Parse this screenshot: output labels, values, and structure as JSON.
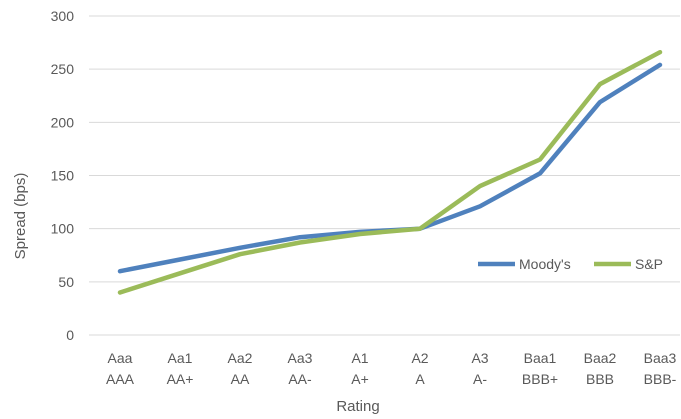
{
  "chart_data": {
    "type": "line",
    "categories": [
      [
        "Aaa",
        "AAA"
      ],
      [
        "Aa1",
        "AA+"
      ],
      [
        "Aa2",
        "AA"
      ],
      [
        "Aa3",
        "AA-"
      ],
      [
        "A1",
        "A+"
      ],
      [
        "A2",
        "A"
      ],
      [
        "A3",
        "A-"
      ],
      [
        "Baa1",
        "BBB+"
      ],
      [
        "Baa2",
        "BBB"
      ],
      [
        "Baa3",
        "BBB-"
      ]
    ],
    "series": [
      {
        "name": "Moody's",
        "color": "#4f81bd",
        "values": [
          60,
          71,
          82,
          92,
          97,
          100,
          121,
          152,
          219,
          254
        ]
      },
      {
        "name": "S&P",
        "color": "#9bbb59",
        "values": [
          40,
          58,
          76,
          87,
          95,
          100,
          140,
          165,
          236,
          266
        ]
      }
    ],
    "xlabel": "Rating",
    "ylabel": "Spread (bps)",
    "ylim": [
      0,
      300
    ],
    "yticks": [
      "0",
      "50",
      "100",
      "150",
      "200",
      "250",
      "300"
    ],
    "grid": true,
    "legend_position": "right"
  }
}
